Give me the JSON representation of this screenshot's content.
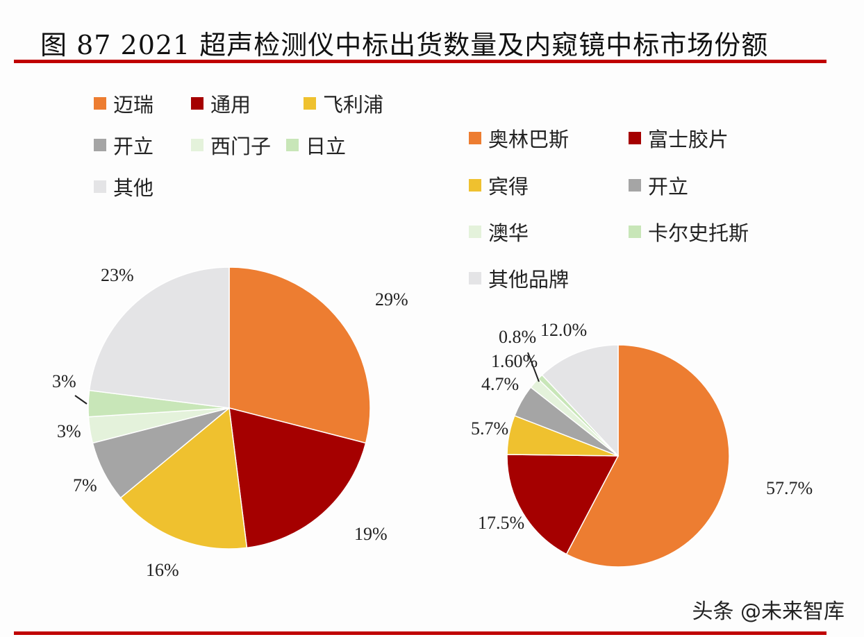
{
  "title": "图 87 2021 超声检测仪中标出货数量及内窥镜中标市场份额",
  "watermark": "头条 @未来智库",
  "chart_data": [
    {
      "type": "pie",
      "title": "",
      "categories": [
        "迈瑞",
        "通用",
        "飞利浦",
        "开立",
        "西门子",
        "日立",
        "其他"
      ],
      "values": [
        29,
        19,
        16,
        7,
        3,
        3,
        23
      ],
      "labels": [
        "29%",
        "19%",
        "16%",
        "7%",
        "3%",
        "3%",
        "23%"
      ],
      "colors": [
        "#ED7D31",
        "#A50000",
        "#EFC12F",
        "#A5A5A5",
        "#E4F2DB",
        "#C8E6B8",
        "#E4E4E6"
      ],
      "legend": "top-left"
    },
    {
      "type": "pie",
      "title": "",
      "categories": [
        "奥林巴斯",
        "富士胶片",
        "宾得",
        "开立",
        "澳华",
        "卡尔史托斯",
        "其他品牌"
      ],
      "values": [
        57.7,
        17.5,
        5.7,
        4.7,
        1.6,
        0.8,
        12.0
      ],
      "labels": [
        "57.7%",
        "17.5%",
        "5.7%",
        "4.7%",
        "1.60%",
        "0.8%",
        "12.0%"
      ],
      "colors": [
        "#ED7D31",
        "#A50000",
        "#EFC12F",
        "#A5A5A5",
        "#E4F2DB",
        "#C8E6B8",
        "#E4E4E6"
      ],
      "legend": "top-right"
    }
  ]
}
